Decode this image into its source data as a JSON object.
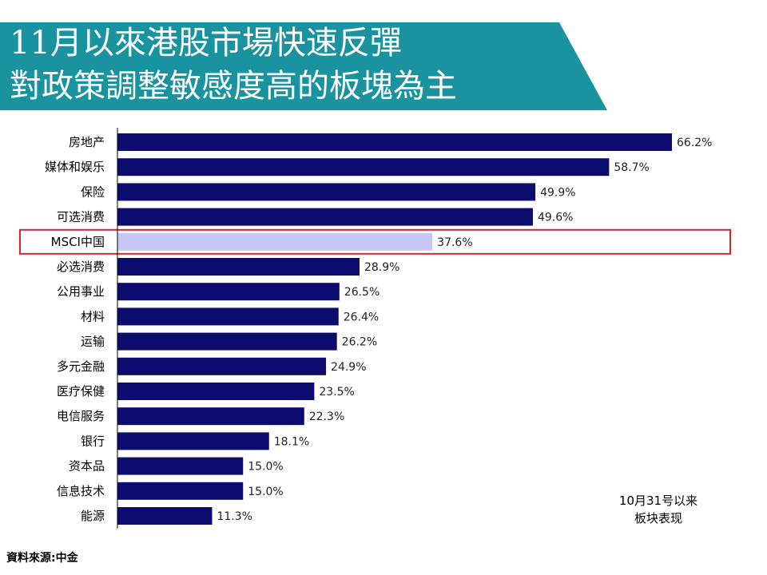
{
  "slide": {
    "title_line1": "11月以來港股市場快速反彈",
    "title_line2": "對政策調整敏感度高的板塊為主",
    "source": "資料來源:中金",
    "banner_color": "#1a93a1"
  },
  "chart_data": {
    "type": "bar",
    "orientation": "horizontal",
    "categories": [
      "房地产",
      "媒体和娱乐",
      "保险",
      "可选消费",
      "MSCI中国",
      "必选消费",
      "公用事业",
      "材料",
      "运输",
      "多元金融",
      "医疗保健",
      "电信服务",
      "银行",
      "资本品",
      "信息技术",
      "能源"
    ],
    "values": [
      66.2,
      58.7,
      49.9,
      49.6,
      37.6,
      28.9,
      26.5,
      26.4,
      26.2,
      24.9,
      23.5,
      22.3,
      18.1,
      15.0,
      15.0,
      11.3
    ],
    "value_labels": [
      "66.2%",
      "58.7%",
      "49.9%",
      "49.6%",
      "37.6%",
      "28.9%",
      "26.5%",
      "26.4%",
      "26.2%",
      "24.9%",
      "23.5%",
      "22.3%",
      "18.1%",
      "15.0%",
      "15.0%",
      "11.3%"
    ],
    "series": [
      {
        "name": "10月31号以来板块表现",
        "values": [
          66.2,
          58.7,
          49.9,
          49.6,
          37.6,
          28.9,
          26.5,
          26.4,
          26.2,
          24.9,
          23.5,
          22.3,
          18.1,
          15.0,
          15.0,
          11.3
        ]
      }
    ],
    "legend_line1": "10月31号以来",
    "legend_line2": "板块表现",
    "legend_position": "bottom-right",
    "highlight_category": "MSCI中国",
    "xlim": [
      0,
      66.2
    ],
    "grid": false,
    "colors": {
      "bar": "#0c0c6e",
      "highlight_bar": "#c8c8f8",
      "highlight_box": "#e0202a",
      "axis": "#000000"
    }
  }
}
